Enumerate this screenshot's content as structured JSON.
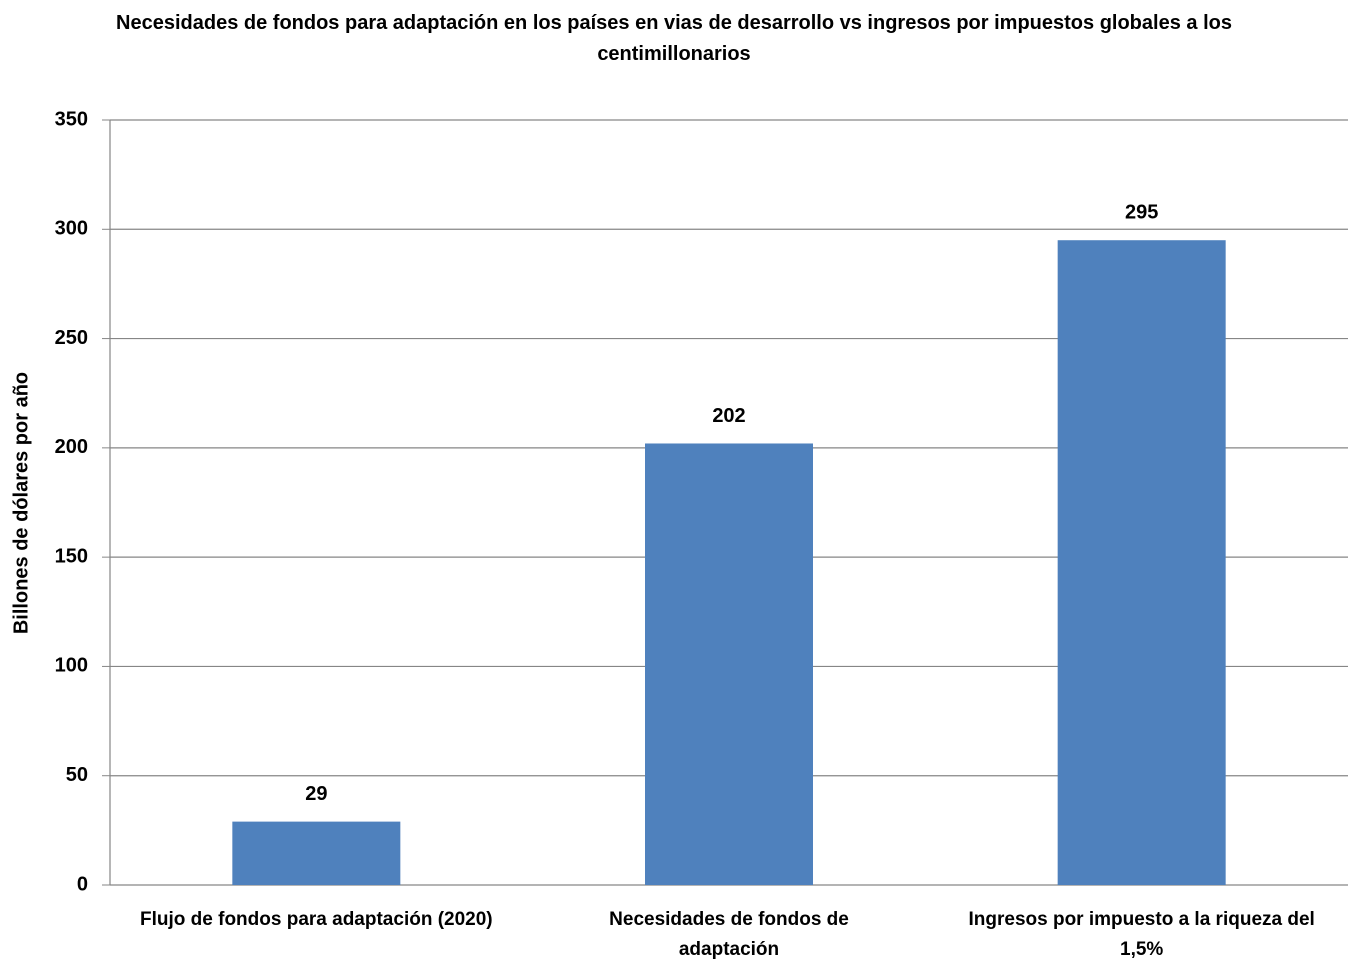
{
  "chart_data": {
    "type": "bar",
    "title": "Necesidades de fondos para adaptación en los países en vias de desarrollo vs ingresos por impuestos globales a los centimillonarios",
    "y_label": "Billones de dólares por año",
    "categories": [
      "Flujo de fondos para adaptación (2020)",
      "Necesidades de fondos de adaptación",
      "Ingresos por impuesto a la riqueza del 1,5%"
    ],
    "values": [
      29,
      202,
      295
    ],
    "color": "#4f81bd",
    "ylim": [
      0,
      350
    ],
    "yticks": [
      0,
      50,
      100,
      150,
      200,
      250,
      300,
      350
    ],
    "grid": true
  }
}
